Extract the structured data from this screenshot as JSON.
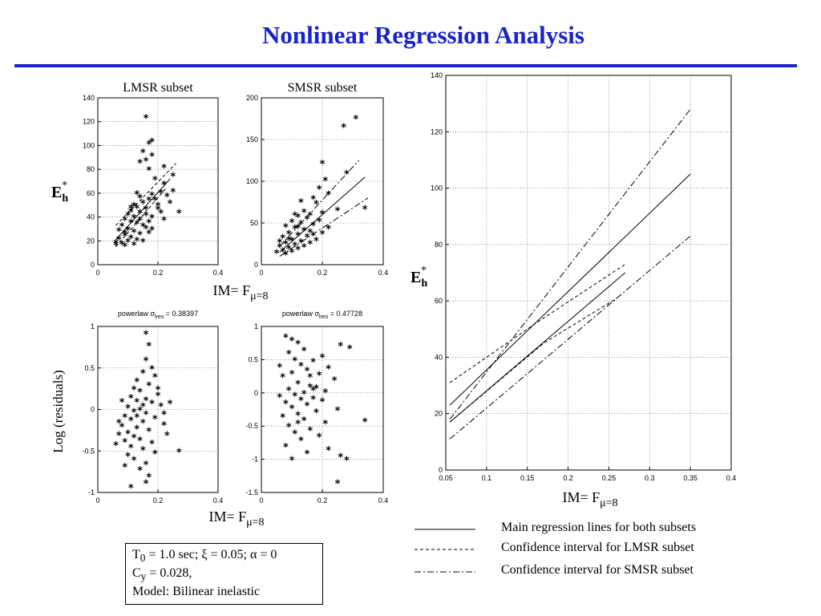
{
  "slide": {
    "title": "Nonlinear Regression Analysis",
    "accent_color": "#1a24c8"
  },
  "chart_data": [
    {
      "id": "lmsr-scatter",
      "type": "scatter",
      "title": "LMSR subset",
      "ylabel_main": "E",
      "ylabel_sub": "h",
      "ylabel_sup": "*",
      "xlim": [
        0,
        0.4
      ],
      "ylim": [
        0,
        140
      ],
      "xticks": [
        0,
        0.2,
        0.4
      ],
      "yticks": [
        0,
        20,
        40,
        60,
        80,
        100,
        120,
        140
      ],
      "grid": true,
      "points": [
        [
          0.16,
          124
        ],
        [
          0.17,
          102
        ],
        [
          0.18,
          104
        ],
        [
          0.15,
          95
        ],
        [
          0.16,
          88
        ],
        [
          0.18,
          92
        ],
        [
          0.14,
          86
        ],
        [
          0.22,
          82
        ],
        [
          0.17,
          80
        ],
        [
          0.25,
          75
        ],
        [
          0.19,
          72
        ],
        [
          0.22,
          68
        ],
        [
          0.25,
          62
        ],
        [
          0.21,
          61
        ],
        [
          0.18,
          59
        ],
        [
          0.14,
          57
        ],
        [
          0.17,
          55
        ],
        [
          0.15,
          52
        ],
        [
          0.12,
          50
        ],
        [
          0.13,
          48
        ],
        [
          0.16,
          47
        ],
        [
          0.11,
          45
        ],
        [
          0.14,
          44
        ],
        [
          0.1,
          42
        ],
        [
          0.12,
          40
        ],
        [
          0.18,
          40
        ],
        [
          0.22,
          38
        ],
        [
          0.27,
          44
        ],
        [
          0.09,
          38
        ],
        [
          0.11,
          36
        ],
        [
          0.13,
          35
        ],
        [
          0.15,
          33
        ],
        [
          0.16,
          31
        ],
        [
          0.08,
          33
        ],
        [
          0.1,
          30
        ],
        [
          0.12,
          28
        ],
        [
          0.17,
          27
        ],
        [
          0.14,
          26
        ],
        [
          0.09,
          25
        ],
        [
          0.11,
          23
        ],
        [
          0.07,
          22
        ],
        [
          0.1,
          20
        ],
        [
          0.06,
          19
        ],
        [
          0.08,
          18
        ],
        [
          0.13,
          21
        ],
        [
          0.15,
          20
        ],
        [
          0.06,
          17
        ],
        [
          0.09,
          16
        ],
        [
          0.12,
          17
        ],
        [
          0.2,
          50
        ],
        [
          0.19,
          55
        ],
        [
          0.23,
          58
        ],
        [
          0.24,
          52
        ],
        [
          0.2,
          47
        ],
        [
          0.16,
          42
        ],
        [
          0.13,
          60
        ],
        [
          0.11,
          48
        ],
        [
          0.14,
          38
        ],
        [
          0.17,
          36
        ],
        [
          0.09,
          27
        ],
        [
          0.07,
          29
        ],
        [
          0.18,
          30
        ],
        [
          0.21,
          44
        ]
      ],
      "lines": [
        {
          "style": "solid",
          "x": [
            0.06,
            0.24
          ],
          "y": [
            21,
            72
          ]
        },
        {
          "style": "dashed",
          "x": [
            0.06,
            0.26
          ],
          "y": [
            33,
            85
          ]
        },
        {
          "style": "dashed",
          "x": [
            0.06,
            0.23
          ],
          "y": [
            15,
            65
          ]
        }
      ]
    },
    {
      "id": "smsr-scatter",
      "type": "scatter",
      "title": "SMSR subset",
      "xlabel_main": "IM= F",
      "xlabel_sub": "μ=8",
      "xlim": [
        0,
        0.4
      ],
      "ylim": [
        0,
        200
      ],
      "xticks": [
        0,
        0.2,
        0.4
      ],
      "yticks": [
        0,
        50,
        100,
        150,
        200
      ],
      "grid": true,
      "points": [
        [
          0.31,
          176
        ],
        [
          0.27,
          166
        ],
        [
          0.2,
          122
        ],
        [
          0.28,
          110
        ],
        [
          0.34,
          68
        ],
        [
          0.21,
          102
        ],
        [
          0.19,
          92
        ],
        [
          0.22,
          85
        ],
        [
          0.17,
          80
        ],
        [
          0.13,
          76
        ],
        [
          0.18,
          74
        ],
        [
          0.25,
          66
        ],
        [
          0.2,
          62
        ],
        [
          0.16,
          60
        ],
        [
          0.12,
          58
        ],
        [
          0.15,
          56
        ],
        [
          0.19,
          53
        ],
        [
          0.1,
          52
        ],
        [
          0.13,
          50
        ],
        [
          0.17,
          48
        ],
        [
          0.08,
          46
        ],
        [
          0.11,
          44
        ],
        [
          0.14,
          42
        ],
        [
          0.16,
          40
        ],
        [
          0.09,
          38
        ],
        [
          0.12,
          36
        ],
        [
          0.15,
          34
        ],
        [
          0.07,
          33
        ],
        [
          0.1,
          30
        ],
        [
          0.13,
          28
        ],
        [
          0.18,
          30
        ],
        [
          0.08,
          26
        ],
        [
          0.11,
          24
        ],
        [
          0.06,
          22
        ],
        [
          0.09,
          20
        ],
        [
          0.12,
          19
        ],
        [
          0.07,
          17
        ],
        [
          0.1,
          16
        ],
        [
          0.14,
          22
        ],
        [
          0.05,
          15
        ],
        [
          0.08,
          13
        ],
        [
          0.16,
          26
        ],
        [
          0.2,
          38
        ],
        [
          0.22,
          44
        ],
        [
          0.11,
          60
        ],
        [
          0.14,
          64
        ],
        [
          0.06,
          28
        ],
        [
          0.09,
          31
        ],
        [
          0.17,
          36
        ],
        [
          0.12,
          45
        ]
      ],
      "lines": [
        {
          "style": "solid",
          "x": [
            0.06,
            0.34
          ],
          "y": [
            15,
            105
          ]
        },
        {
          "style": "dashdot",
          "x": [
            0.06,
            0.32
          ],
          "y": [
            22,
            125
          ]
        },
        {
          "style": "dashdot",
          "x": [
            0.06,
            0.35
          ],
          "y": [
            10,
            80
          ]
        }
      ]
    },
    {
      "id": "lmsr-residuals",
      "type": "scatter",
      "title_main": "powerlaw σ",
      "title_sub": "lres",
      "title_value": "= 0.38397",
      "ylabel": "Log (residuals)",
      "xlabel_main": "IM= F",
      "xlabel_sub": "μ=8",
      "xlim": [
        0,
        0.4
      ],
      "ylim": [
        -1,
        1
      ],
      "xticks": [
        0,
        0.2,
        0.4
      ],
      "yticks": [
        -1,
        -0.5,
        0,
        0.5,
        1
      ],
      "grid": true,
      "points": [
        [
          0.16,
          0.92
        ],
        [
          0.17,
          0.78
        ],
        [
          0.16,
          0.6
        ],
        [
          0.18,
          0.5
        ],
        [
          0.15,
          0.45
        ],
        [
          0.19,
          0.4
        ],
        [
          0.13,
          0.35
        ],
        [
          0.17,
          0.3
        ],
        [
          0.12,
          0.25
        ],
        [
          0.14,
          0.22
        ],
        [
          0.2,
          0.18
        ],
        [
          0.11,
          0.15
        ],
        [
          0.16,
          0.12
        ],
        [
          0.13,
          0.1
        ],
        [
          0.18,
          0.08
        ],
        [
          0.21,
          0.05
        ],
        [
          0.1,
          0.03
        ],
        [
          0.14,
          0.0
        ],
        [
          0.12,
          -0.02
        ],
        [
          0.16,
          -0.05
        ],
        [
          0.09,
          -0.08
        ],
        [
          0.19,
          -0.1
        ],
        [
          0.11,
          -0.12
        ],
        [
          0.15,
          -0.15
        ],
        [
          0.22,
          -0.18
        ],
        [
          0.08,
          -0.2
        ],
        [
          0.13,
          -0.22
        ],
        [
          0.17,
          -0.25
        ],
        [
          0.1,
          -0.28
        ],
        [
          0.07,
          -0.3
        ],
        [
          0.12,
          -0.33
        ],
        [
          0.14,
          -0.36
        ],
        [
          0.09,
          -0.38
        ],
        [
          0.18,
          -0.4
        ],
        [
          0.06,
          -0.42
        ],
        [
          0.11,
          -0.45
        ],
        [
          0.27,
          -0.5
        ],
        [
          0.15,
          -0.48
        ],
        [
          0.1,
          -0.55
        ],
        [
          0.19,
          -0.52
        ],
        [
          0.12,
          -0.6
        ],
        [
          0.16,
          -0.65
        ],
        [
          0.09,
          -0.68
        ],
        [
          0.14,
          -0.72
        ],
        [
          0.17,
          -0.8
        ],
        [
          0.16,
          -0.88
        ],
        [
          0.11,
          -0.93
        ],
        [
          0.24,
          0.08
        ],
        [
          0.22,
          -0.05
        ],
        [
          0.08,
          0.1
        ],
        [
          0.2,
          0.25
        ],
        [
          0.15,
          0.05
        ],
        [
          0.13,
          -0.08
        ],
        [
          0.07,
          -0.15
        ],
        [
          0.23,
          -0.3
        ]
      ]
    },
    {
      "id": "smsr-residuals",
      "type": "scatter",
      "title_main": "powerlaw σ",
      "title_sub": "lres",
      "title_value": "= 0.47728",
      "xlim": [
        0,
        0.4
      ],
      "ylim": [
        -1.5,
        1
      ],
      "xticks": [
        0,
        0.2,
        0.4
      ],
      "yticks": [
        -1.5,
        -1,
        -0.5,
        0,
        0.5,
        1
      ],
      "grid": true,
      "points": [
        [
          0.08,
          0.85
        ],
        [
          0.1,
          0.8
        ],
        [
          0.12,
          0.75
        ],
        [
          0.26,
          0.72
        ],
        [
          0.29,
          0.68
        ],
        [
          0.14,
          0.65
        ],
        [
          0.09,
          0.6
        ],
        [
          0.2,
          0.55
        ],
        [
          0.11,
          0.5
        ],
        [
          0.17,
          0.48
        ],
        [
          0.13,
          0.42
        ],
        [
          0.22,
          0.38
        ],
        [
          0.15,
          0.35
        ],
        [
          0.1,
          0.3
        ],
        [
          0.19,
          0.28
        ],
        [
          0.07,
          0.25
        ],
        [
          0.24,
          0.2
        ],
        [
          0.12,
          0.15
        ],
        [
          0.16,
          0.1
        ],
        [
          0.18,
          0.08
        ],
        [
          0.09,
          0.05
        ],
        [
          0.21,
          0.02
        ],
        [
          0.14,
          0.0
        ],
        [
          0.11,
          -0.03
        ],
        [
          0.06,
          -0.05
        ],
        [
          0.17,
          -0.08
        ],
        [
          0.13,
          -0.1
        ],
        [
          0.2,
          -0.12
        ],
        [
          0.08,
          -0.15
        ],
        [
          0.15,
          -0.18
        ],
        [
          0.1,
          -0.22
        ],
        [
          0.25,
          -0.25
        ],
        [
          0.18,
          -0.28
        ],
        [
          0.12,
          -0.32
        ],
        [
          0.07,
          -0.35
        ],
        [
          0.14,
          -0.4
        ],
        [
          0.34,
          -0.42
        ],
        [
          0.21,
          -0.45
        ],
        [
          0.09,
          -0.5
        ],
        [
          0.16,
          -0.55
        ],
        [
          0.11,
          -0.6
        ],
        [
          0.19,
          -0.65
        ],
        [
          0.13,
          -0.7
        ],
        [
          0.08,
          -0.8
        ],
        [
          0.22,
          -0.85
        ],
        [
          0.15,
          -0.9
        ],
        [
          0.26,
          -0.95
        ],
        [
          0.1,
          -1.0
        ],
        [
          0.28,
          -1.0
        ],
        [
          0.25,
          -1.35
        ],
        [
          0.06,
          0.4
        ],
        [
          0.16,
          0.25
        ],
        [
          0.12,
          -0.45
        ],
        [
          0.17,
          0.05
        ]
      ]
    },
    {
      "id": "main-regression",
      "type": "line",
      "xlabel_main": "IM= F",
      "xlabel_sub": "μ=8",
      "ylabel_main": "E",
      "ylabel_sub": "h",
      "ylabel_sup": "*",
      "xlim": [
        0.05,
        0.4
      ],
      "ylim": [
        0,
        140
      ],
      "xticks": [
        0.05,
        0.1,
        0.15,
        0.2,
        0.25,
        0.3,
        0.35,
        0.4
      ],
      "yticks": [
        0,
        20,
        40,
        60,
        80,
        100,
        120,
        140
      ],
      "grid": true,
      "series": [
        {
          "style": "solid",
          "x": [
            0.055,
            0.35
          ],
          "y": [
            23,
            105
          ]
        },
        {
          "style": "solid",
          "x": [
            0.055,
            0.27
          ],
          "y": [
            17,
            70
          ]
        },
        {
          "style": "dashed",
          "x": [
            0.055,
            0.16,
            0.27
          ],
          "y": [
            31,
            52,
            73
          ]
        },
        {
          "style": "dashed",
          "x": [
            0.055,
            0.17,
            0.26
          ],
          "y": [
            17,
            45,
            61
          ]
        },
        {
          "style": "dashdot",
          "x": [
            0.055,
            0.35
          ],
          "y": [
            18,
            128
          ]
        },
        {
          "style": "dashdot",
          "x": [
            0.055,
            0.35
          ],
          "y": [
            11,
            83
          ]
        }
      ]
    }
  ],
  "legend": [
    {
      "style": "solid",
      "label": "Main regression lines for both subsets"
    },
    {
      "style": "dashed",
      "label": "Confidence interval for LMSR subset"
    },
    {
      "style": "dashdot",
      "label": "Confidence interval for SMSR subset"
    }
  ],
  "params": {
    "line1_a": "T",
    "line1_a_sub": "0",
    "line1_b": " = 1.0 sec; ξ = 0.05; α = 0",
    "line2_a": "C",
    "line2_a_sub": "y",
    "line2_b": " = 0.028,",
    "line3": "Model: Bilinear inelastic"
  }
}
